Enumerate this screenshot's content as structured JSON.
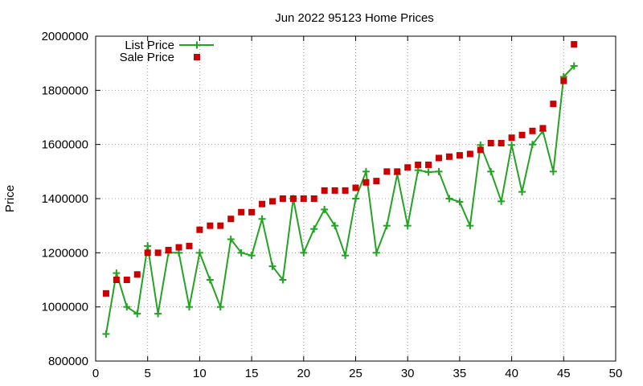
{
  "chart_data": {
    "type": "scatter",
    "title": "Jun 2022 95123 Home Prices",
    "xlabel": "",
    "ylabel": "Price",
    "xlim": [
      0,
      50
    ],
    "ylim": [
      800000,
      2000000
    ],
    "xticks": [
      0,
      5,
      10,
      15,
      20,
      25,
      30,
      35,
      40,
      45,
      50
    ],
    "yticks": [
      800000,
      1000000,
      1200000,
      1400000,
      1600000,
      1800000,
      2000000
    ],
    "grid": true,
    "legend_position": "top-left",
    "series": [
      {
        "name": "List Price",
        "style": "linespoints",
        "marker": "plus",
        "color": "#22a322",
        "points": [
          [
            1,
            900000
          ],
          [
            2,
            1125000
          ],
          [
            3,
            1000000
          ],
          [
            4,
            975000
          ],
          [
            5,
            1225000
          ],
          [
            6,
            975000
          ],
          [
            7,
            1200000
          ],
          [
            8,
            1200000
          ],
          [
            9,
            1000000
          ],
          [
            10,
            1200000
          ],
          [
            11,
            1100000
          ],
          [
            12,
            1000000
          ],
          [
            13,
            1250000
          ],
          [
            14,
            1200000
          ],
          [
            15,
            1190000
          ],
          [
            16,
            1325000
          ],
          [
            17,
            1150000
          ],
          [
            18,
            1100000
          ],
          [
            19,
            1400000
          ],
          [
            20,
            1200000
          ],
          [
            21,
            1288000
          ],
          [
            22,
            1360000
          ],
          [
            23,
            1300000
          ],
          [
            24,
            1190000
          ],
          [
            25,
            1400000
          ],
          [
            26,
            1500000
          ],
          [
            27,
            1200000
          ],
          [
            28,
            1300000
          ],
          [
            29,
            1490000
          ],
          [
            30,
            1300000
          ],
          [
            31,
            1505000
          ],
          [
            32,
            1498000
          ],
          [
            33,
            1500000
          ],
          [
            34,
            1400000
          ],
          [
            35,
            1388000
          ],
          [
            36,
            1300000
          ],
          [
            37,
            1598000
          ],
          [
            38,
            1500000
          ],
          [
            39,
            1390000
          ],
          [
            40,
            1598000
          ],
          [
            41,
            1425000
          ],
          [
            42,
            1600000
          ],
          [
            43,
            1650000
          ],
          [
            44,
            1500000
          ],
          [
            45,
            1850000
          ],
          [
            46,
            1890000
          ]
        ]
      },
      {
        "name": "Sale Price",
        "style": "points",
        "marker": "square",
        "color": "#cc0000",
        "points": [
          [
            1,
            1050000
          ],
          [
            2,
            1100000
          ],
          [
            3,
            1100000
          ],
          [
            4,
            1120000
          ],
          [
            5,
            1200000
          ],
          [
            6,
            1200000
          ],
          [
            7,
            1210000
          ],
          [
            8,
            1220000
          ],
          [
            9,
            1225000
          ],
          [
            10,
            1285000
          ],
          [
            11,
            1300000
          ],
          [
            12,
            1300000
          ],
          [
            13,
            1325000
          ],
          [
            14,
            1350000
          ],
          [
            15,
            1350000
          ],
          [
            16,
            1380000
          ],
          [
            17,
            1390000
          ],
          [
            18,
            1400000
          ],
          [
            19,
            1400000
          ],
          [
            20,
            1400000
          ],
          [
            21,
            1400000
          ],
          [
            22,
            1430000
          ],
          [
            23,
            1430000
          ],
          [
            24,
            1430000
          ],
          [
            25,
            1440000
          ],
          [
            26,
            1460000
          ],
          [
            27,
            1465000
          ],
          [
            28,
            1500000
          ],
          [
            29,
            1500000
          ],
          [
            30,
            1515000
          ],
          [
            31,
            1525000
          ],
          [
            32,
            1525000
          ],
          [
            33,
            1550000
          ],
          [
            34,
            1555000
          ],
          [
            35,
            1560000
          ],
          [
            36,
            1565000
          ],
          [
            37,
            1580000
          ],
          [
            38,
            1605000
          ],
          [
            39,
            1605000
          ],
          [
            40,
            1625000
          ],
          [
            41,
            1635000
          ],
          [
            42,
            1650000
          ],
          [
            43,
            1660000
          ],
          [
            44,
            1750000
          ],
          [
            45,
            1835000
          ],
          [
            46,
            1970000
          ]
        ]
      }
    ]
  }
}
